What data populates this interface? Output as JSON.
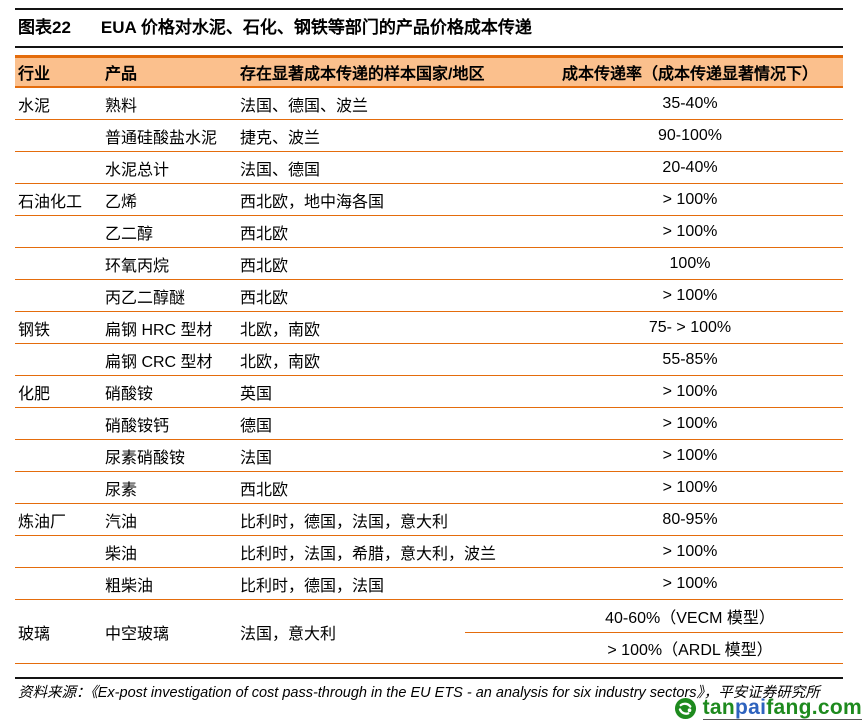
{
  "title": {
    "label": "图表22",
    "text": "EUA 价格对水泥、石化、钢铁等部门的产品价格成本传递"
  },
  "colors": {
    "header_bg": "#FBC08D",
    "line_orange": "#E46C0C",
    "line_black": "#141414",
    "logo_green": "#1E8A1E",
    "logo_blue": "#2E63BE"
  },
  "table": {
    "headers": [
      "行业",
      "产品",
      "存在显著成本传递的样本国家/地区",
      "成本传递率（成本传递显著情况下）"
    ],
    "rows": [
      {
        "industry": "水泥",
        "product": "熟料",
        "regions": "法国、德国、波兰",
        "rate": "35-40%"
      },
      {
        "industry": "",
        "product": "普通硅酸盐水泥",
        "regions": "捷克、波兰",
        "rate": "90-100%"
      },
      {
        "industry": "",
        "product": "水泥总计",
        "regions": "法国、德国",
        "rate": "20-40%"
      },
      {
        "industry": "石油化工",
        "product": "乙烯",
        "regions": "西北欧，地中海各国",
        "rate": "> 100%"
      },
      {
        "industry": "",
        "product": "乙二醇",
        "regions": "西北欧",
        "rate": "> 100%"
      },
      {
        "industry": "",
        "product": "环氧丙烷",
        "regions": "西北欧",
        "rate": "100%"
      },
      {
        "industry": "",
        "product": "丙乙二醇醚",
        "regions": "西北欧",
        "rate": "> 100%"
      },
      {
        "industry": "钢铁",
        "product": "扁钢 HRC 型材",
        "regions": "北欧，南欧",
        "rate": "75- > 100%"
      },
      {
        "industry": "",
        "product": "扁钢 CRC 型材",
        "regions": "北欧，南欧",
        "rate": "55-85%"
      },
      {
        "industry": "化肥",
        "product": "硝酸铵",
        "regions": "英国",
        "rate": "> 100%"
      },
      {
        "industry": "",
        "product": "硝酸铵钙",
        "regions": "德国",
        "rate": "> 100%"
      },
      {
        "industry": "",
        "product": "尿素硝酸铵",
        "regions": "法国",
        "rate": "> 100%"
      },
      {
        "industry": "",
        "product": "尿素",
        "regions": "西北欧",
        "rate": "> 100%"
      },
      {
        "industry": "炼油厂",
        "product": "汽油",
        "regions": "比利时，德国，法国，意大利",
        "rate": "80-95%"
      },
      {
        "industry": "",
        "product": "柴油",
        "regions": "比利时，法国，希腊，意大利，波兰",
        "rate": "> 100%"
      },
      {
        "industry": "",
        "product": "粗柴油",
        "regions": "比利时，德国，法国",
        "rate": "> 100%"
      },
      {
        "industry": "玻璃",
        "product": "中空玻璃",
        "regions": "法国，意大利",
        "rate_split": [
          "40-60%（VECM 模型）",
          "> 100%（ARDL 模型）"
        ]
      }
    ]
  },
  "footer": {
    "source": "资料来源：《Ex-post investigation of cost pass-through in the EU ETS - an analysis for six industry sectors》，平安证券研究所"
  },
  "watermark": {
    "icon": "tanpaifang-logo-icon",
    "segments": [
      {
        "text": "tan",
        "color": "logo_green"
      },
      {
        "text": "pai",
        "color": "logo_blue"
      },
      {
        "text": "fang.com",
        "color": "logo_green"
      }
    ]
  }
}
